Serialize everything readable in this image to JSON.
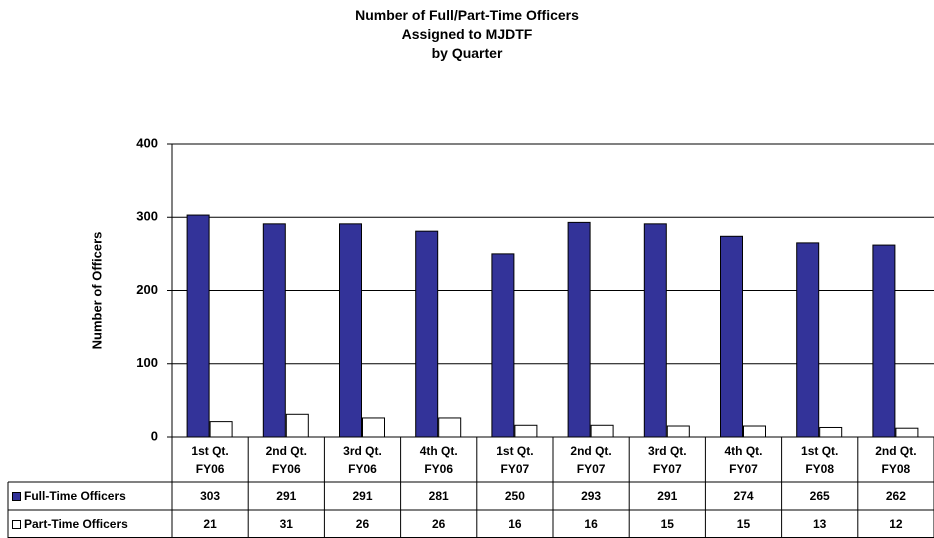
{
  "chart_data": {
    "type": "bar",
    "title": [
      "Number of Full/Part-Time Officers",
      "Assigned to MJDTF",
      "by Quarter"
    ],
    "y_label": "Number of Officers",
    "categories": [
      "1st Qt. FY06",
      "2nd Qt. FY06",
      "3rd Qt. FY06",
      "4th Qt. FY06",
      "1st Qt. FY07",
      "2nd Qt. FY07",
      "3rd Qt. FY07",
      "4th Qt. FY07",
      "1st Qt. FY08",
      "2nd Qt. FY08"
    ],
    "series": [
      {
        "name": "Full-Time Officers",
        "color": "#333399",
        "values": [
          303,
          291,
          291,
          281,
          250,
          293,
          291,
          274,
          265,
          262
        ]
      },
      {
        "name": "Part-Time Officers",
        "color": "#ffffff",
        "values": [
          21,
          31,
          26,
          26,
          16,
          16,
          15,
          15,
          13,
          12
        ]
      }
    ],
    "ylim": [
      0,
      400
    ],
    "yticks": [
      0,
      100,
      200,
      300,
      400
    ],
    "grid": true
  }
}
